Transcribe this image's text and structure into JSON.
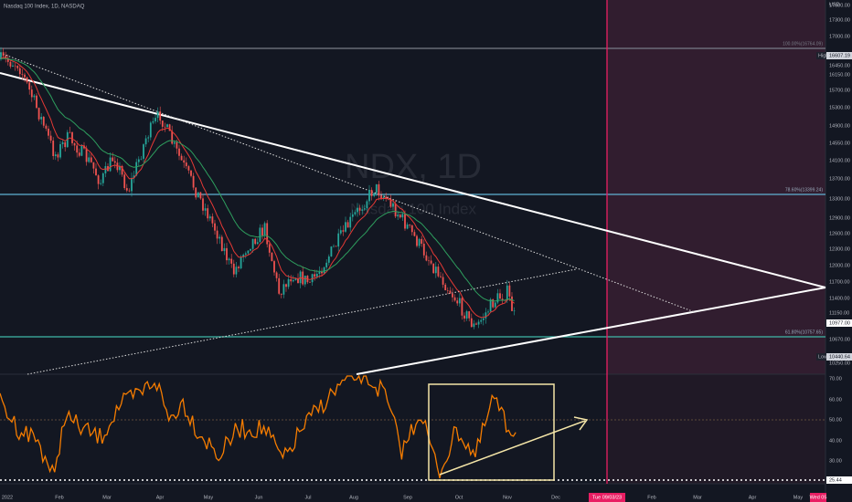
{
  "header": {
    "title": "Nasdaq 100 Index, 1D, NASDAQ"
  },
  "watermark": {
    "symbol": "NDX, 1D",
    "name": "Nasdaq 100 Index"
  },
  "price_axis": {
    "currency": "USD",
    "labels": [
      "17600.00",
      "17300.00",
      "17000.00",
      "16450.00",
      "16150.00",
      "15700.00",
      "15300.00",
      "14900.00",
      "14550.00",
      "14100.00",
      "13700.00",
      "13300.00",
      "12900.00",
      "12600.00",
      "12300.00",
      "12000.00",
      "11700.00",
      "11400.00",
      "11150.00",
      "10670.00",
      "10250.00"
    ]
  },
  "markers": {
    "high": {
      "label": "High",
      "price": "16607.19"
    },
    "low": {
      "label": "Low",
      "price": "10440.64"
    },
    "last": "10977.00"
  },
  "fib_levels": [
    "100.00%(16764.09)",
    "78.60%(13399.24)",
    "61.80%(10757.65)"
  ],
  "rsi_axis": {
    "labels": [
      "70.00",
      "60.00",
      "50.00",
      "40.00",
      "30.00"
    ],
    "last": "25.44"
  },
  "time_axis": {
    "labels": [
      "2022",
      "Feb",
      "Mar",
      "Apr",
      "May",
      "Jun",
      "Jul",
      "Aug",
      "Sep",
      "Oct",
      "Nov",
      "Dec",
      "Feb",
      "Mar",
      "Apr",
      "May"
    ],
    "cursor": "Tue 09/03/23",
    "end": "Wed 05"
  }
}
